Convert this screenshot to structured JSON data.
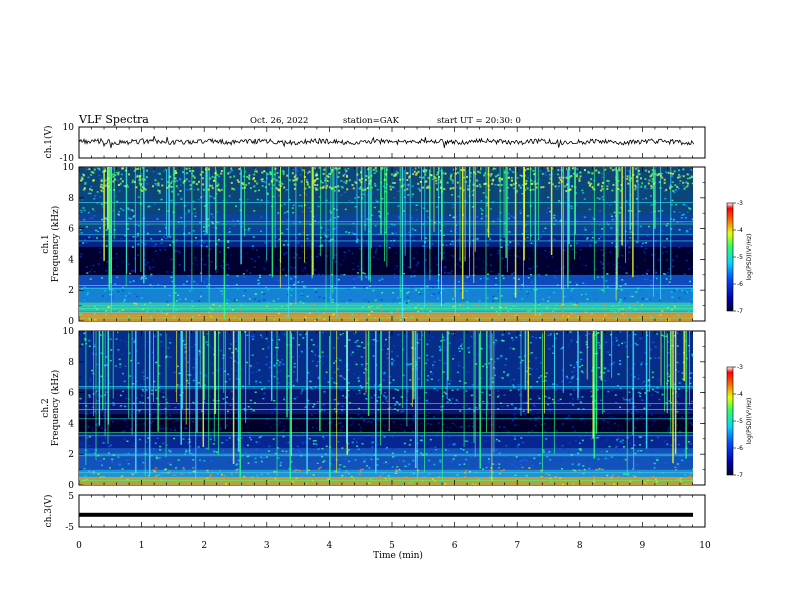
{
  "header": {
    "title": "VLF Spectra",
    "date": "Oct. 26, 2022",
    "station": "station=GAK",
    "start": "start UT =  20:30: 0"
  },
  "chart_data": [
    {
      "type": "line",
      "ylabel": "ch.1(V)",
      "ylim": [
        -10,
        10
      ],
      "y_ticks": [
        "10",
        "-10"
      ],
      "xlim": [
        0,
        10
      ],
      "description_level": 0.5
    },
    {
      "type": "heatmap",
      "ylabel_line1": "ch.1",
      "ylabel_line2": "Frequency (kHz)",
      "ylim": [
        0,
        10
      ],
      "y_ticks": [
        "10",
        "8",
        "6",
        "4",
        "2",
        "0"
      ],
      "colorbar": {
        "label": "log(PSD)(V²/Hz)",
        "ticks": [
          "-3",
          "-4",
          "-5",
          "-6",
          "-7"
        ],
        "range": [
          -7,
          -3
        ]
      }
    },
    {
      "type": "heatmap",
      "ylabel_line1": "ch.2",
      "ylabel_line2": "Frequency (kHz)",
      "ylim": [
        0,
        10
      ],
      "y_ticks": [
        "10",
        "8",
        "6",
        "4",
        "2",
        "0"
      ],
      "colorbar": {
        "label": "log(PSD)(V²/Hz)",
        "ticks": [
          "-3",
          "-4",
          "-5",
          "-6",
          "-7"
        ],
        "range": [
          -7,
          -3
        ]
      }
    },
    {
      "type": "line",
      "ylabel": "ch.3(V)",
      "ylim": [
        -5,
        5
      ],
      "y_ticks": [
        "5",
        "-5"
      ],
      "level": -1.2
    }
  ],
  "x_axis": {
    "label": "Time (min)",
    "range": [
      0,
      10
    ],
    "ticks": [
      "0",
      "1",
      "2",
      "3",
      "4",
      "5",
      "6",
      "7",
      "8",
      "9",
      "10"
    ]
  },
  "colors": {
    "background": "#000010",
    "trace": "#000000"
  }
}
